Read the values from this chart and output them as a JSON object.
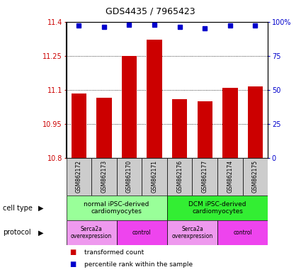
{
  "title": "GDS4435 / 7965423",
  "samples": [
    "GSM862172",
    "GSM862173",
    "GSM862170",
    "GSM862171",
    "GSM862176",
    "GSM862177",
    "GSM862174",
    "GSM862175"
  ],
  "red_values": [
    11.085,
    11.065,
    11.25,
    11.32,
    11.06,
    11.05,
    11.11,
    11.115
  ],
  "blue_values": [
    97,
    96,
    98,
    98,
    96,
    95,
    97,
    97
  ],
  "ylim_left": [
    10.8,
    11.4
  ],
  "ylim_right": [
    0,
    100
  ],
  "yticks_left": [
    10.8,
    10.95,
    11.1,
    11.25,
    11.4
  ],
  "yticks_right": [
    0,
    25,
    50,
    75,
    100
  ],
  "ytick_labels_left": [
    "10.8",
    "10.95",
    "11.1",
    "11.25",
    "11.4"
  ],
  "ytick_labels_right": [
    "0",
    "25",
    "50",
    "75",
    "100%"
  ],
  "red_color": "#cc0000",
  "blue_color": "#0000cc",
  "bar_width": 0.6,
  "cell_type_groups": [
    {
      "label": "normal iPSC-derived\ncardiomyocytes",
      "start": 0,
      "end": 3,
      "color": "#99ff99"
    },
    {
      "label": "DCM iPSC-derived\ncardiomyocytes",
      "start": 4,
      "end": 7,
      "color": "#33ee33"
    }
  ],
  "protocol_groups": [
    {
      "label": "Serca2a\noverexpression",
      "start": 0,
      "end": 1,
      "color": "#ee99ee"
    },
    {
      "label": "control",
      "start": 2,
      "end": 3,
      "color": "#ee44ee"
    },
    {
      "label": "Serca2a\noverexpression",
      "start": 4,
      "end": 5,
      "color": "#ee99ee"
    },
    {
      "label": "control",
      "start": 6,
      "end": 7,
      "color": "#ee44ee"
    }
  ],
  "legend_red_label": "transformed count",
  "legend_blue_label": "percentile rank within the sample",
  "cell_type_label": "cell type",
  "protocol_label": "protocol",
  "sample_bg_color": "#cccccc",
  "title_fontsize": 9
}
